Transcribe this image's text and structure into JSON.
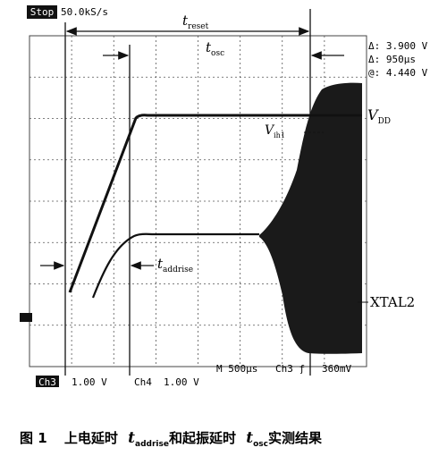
{
  "header": {
    "status": "Stop",
    "rate": "50.0kS/s"
  },
  "annotations": {
    "t_reset": {
      "base": "t",
      "sub": "reset"
    },
    "t_osc": {
      "base": "t",
      "sub": "osc"
    },
    "t_addrise": {
      "base": "t",
      "sub": "addrise"
    },
    "vdd": {
      "base": "V",
      "sub": "DD"
    },
    "vih1": {
      "base": "V",
      "sub": "ih1"
    },
    "xtal2": "XTAL2"
  },
  "readout": [
    "Δ: 3.900 V",
    "Δ: 950µs",
    "@: 4.440 V"
  ],
  "footer": {
    "ch3": "Ch3",
    "ch3_scale": "1.00 V",
    "ch4": "Ch4",
    "ch4_scale": "1.00 V",
    "timebase": "M 500µs",
    "trigger": "Ch3 ƒ",
    "trigger_level": "360mV"
  },
  "caption": {
    "prefix": "图 1",
    "text1": "上电延时",
    "t1": {
      "base": "t",
      "sub": "addrise"
    },
    "text2": "和起振延时",
    "t2": {
      "base": "t",
      "sub": "osc"
    },
    "text3": "实测结果"
  }
}
